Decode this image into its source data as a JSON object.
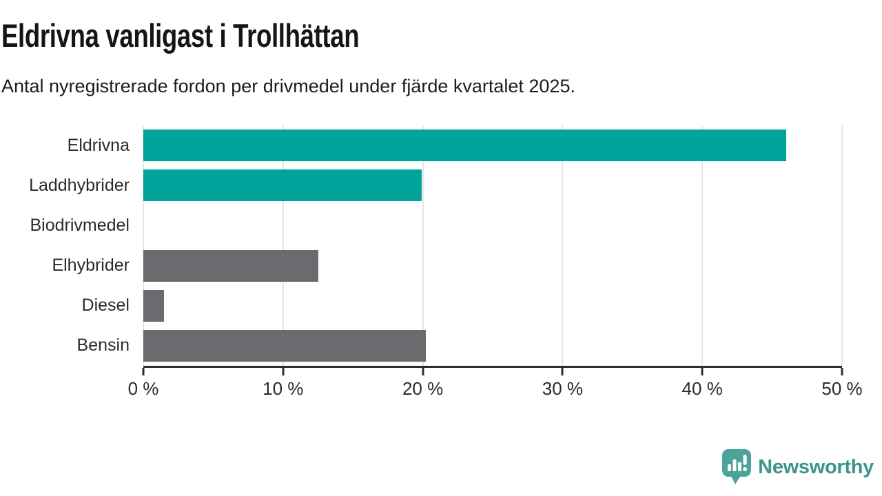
{
  "header": {
    "title": "Eldrivna vanligast i Trollhättan",
    "subtitle": "Antal nyregistrerade fordon per drivmedel under fjärde kvartalet 2025."
  },
  "chart_data": {
    "type": "bar",
    "orientation": "horizontal",
    "title": "Eldrivna vanligast i Trollhättan",
    "subtitle": "Antal nyregistrerade fordon per drivmedel under fjärde kvartalet 2025.",
    "categories": [
      "Eldrivna",
      "Laddhybrider",
      "Biodrivmedel",
      "Elhybrider",
      "Diesel",
      "Bensin"
    ],
    "values": [
      46,
      19.9,
      0,
      12.5,
      1.5,
      20.2
    ],
    "unit": "%",
    "bar_colors": [
      "#00a49a",
      "#00a49a",
      "#6b6a6f",
      "#6b6a6f",
      "#6b6a6f",
      "#6b6a6f"
    ],
    "accent_color": "#00a49a",
    "neutral_color": "#6b6a6f",
    "xlim": [
      0,
      50
    ],
    "x_ticks": [
      0,
      10,
      20,
      30,
      40,
      50
    ],
    "x_tick_labels": [
      "0 %",
      "10 %",
      "20 %",
      "30 %",
      "40 %",
      "50 %"
    ],
    "grid": "vertical",
    "gridline_color": "#e4e4e4",
    "axis_color": "#2e2e2e",
    "legend": "none"
  },
  "footer": {
    "brand": "Newsworthy",
    "logo_icon": "newsworthy-speech-bubble-bar-chart-icon",
    "brand_color": "#3b948d",
    "icon_color": "#4da29a"
  }
}
